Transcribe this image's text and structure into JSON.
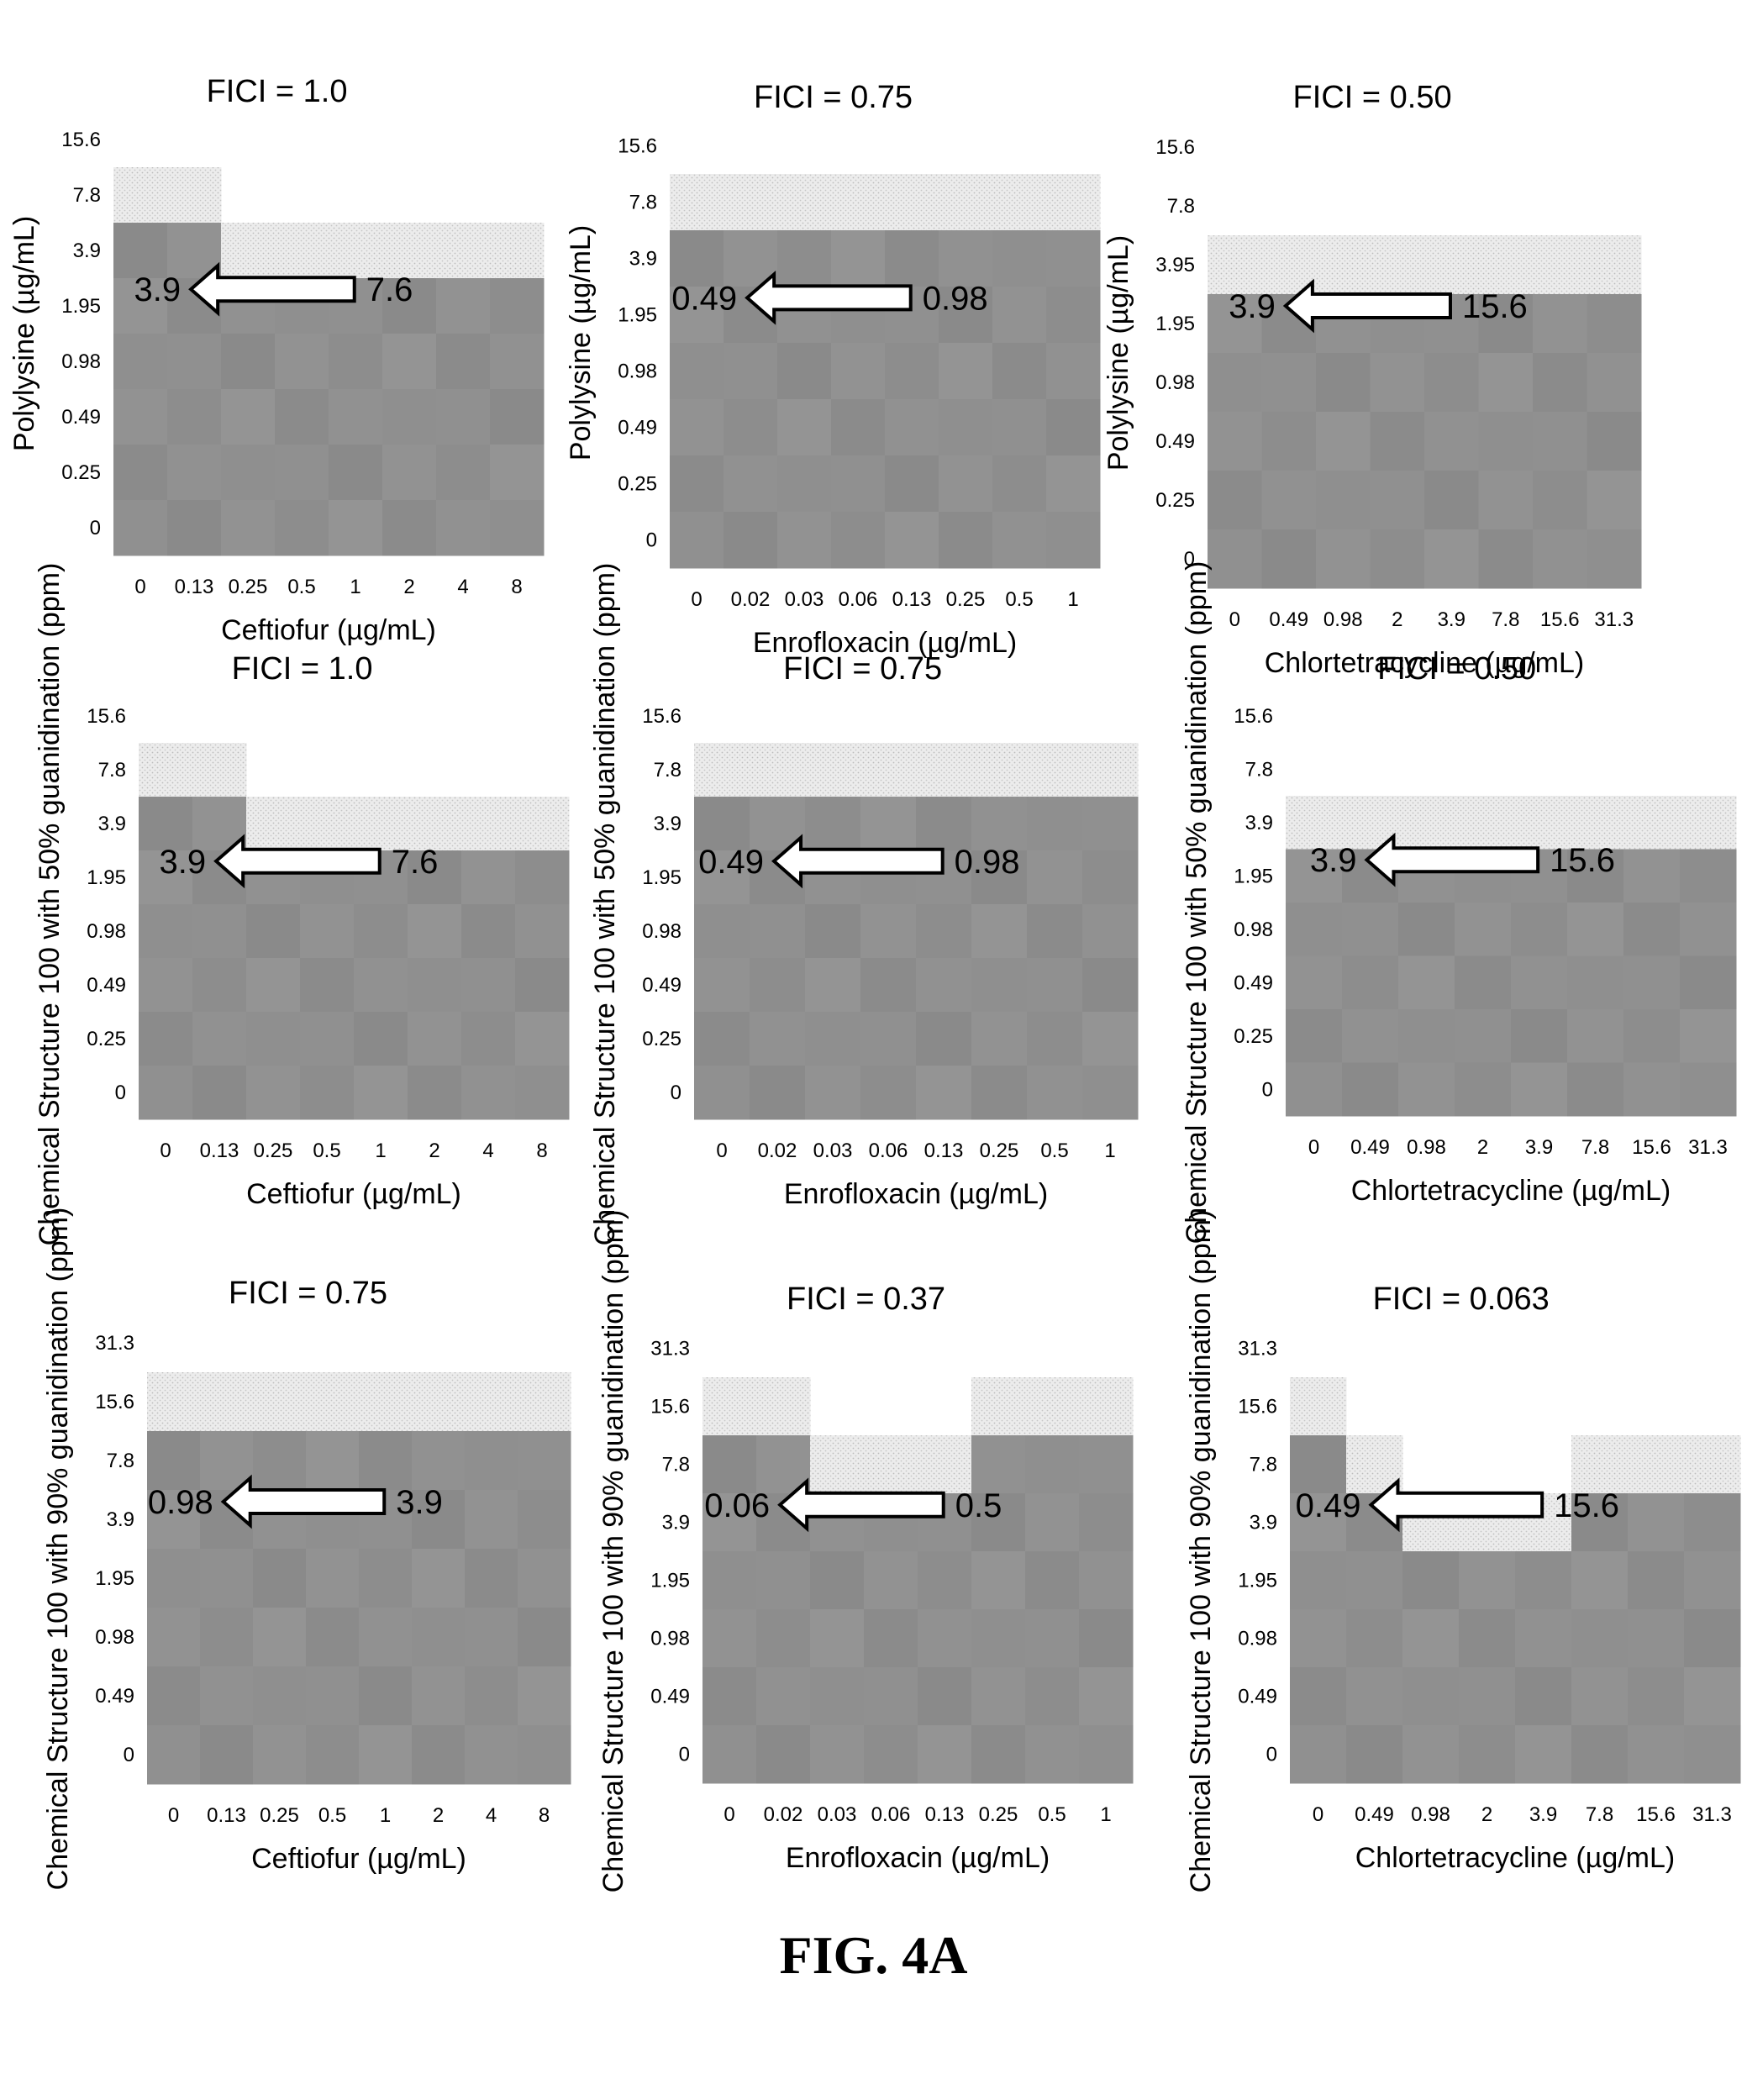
{
  "figure_caption": "FIG. 4A",
  "chart_data": [
    {
      "type": "heatmap",
      "title": "FICI = 1.0",
      "xlabel": "Ceftiofur (µg/mL)",
      "ylabel": "Polylysine (µg/mL)",
      "x_ticks": [
        "0",
        "0.13",
        "0.25",
        "0.5",
        "1",
        "2",
        "4",
        "8"
      ],
      "y_ticks": [
        "15.6",
        "7.8",
        "3.9",
        "1.95",
        "0.98",
        "0.49",
        "0.25",
        "0"
      ],
      "growth_boundary": [
        6,
        6,
        5,
        5,
        5,
        5,
        5,
        5
      ],
      "arrow": {
        "from": "7.6",
        "to": "3.9"
      }
    },
    {
      "type": "heatmap",
      "title": "FICI = 0.75",
      "xlabel": "Enrofloxacin (µg/mL)",
      "ylabel": "Polylysine (µg/mL)",
      "x_ticks": [
        "0",
        "0.02",
        "0.03",
        "0.06",
        "0.13",
        "0.25",
        "0.5",
        "1"
      ],
      "y_ticks": [
        "15.6",
        "7.8",
        "3.9",
        "1.95",
        "0.98",
        "0.49",
        "0.25",
        "0"
      ],
      "growth_boundary": [
        6,
        6,
        6,
        6,
        6,
        6,
        6,
        6
      ],
      "arrow": {
        "from": "0.98",
        "to": "0.49"
      }
    },
    {
      "type": "heatmap",
      "title": "FICI = 0.50",
      "xlabel": "Chlortetracycline (µg/mL)",
      "ylabel": "Polylysine (µg/mL)",
      "x_ticks": [
        "0",
        "0.49",
        "0.98",
        "2",
        "3.9",
        "7.8",
        "15.6",
        "31.3"
      ],
      "y_ticks": [
        "15.6",
        "7.8",
        "3.95",
        "1.95",
        "0.98",
        "0.49",
        "0.25",
        "0"
      ],
      "growth_boundary": [
        5,
        5,
        5,
        5,
        5,
        5,
        5,
        5
      ],
      "arrow": {
        "from": "15.6",
        "to": "3.9"
      }
    },
    {
      "type": "heatmap",
      "title": "FICI = 1.0",
      "xlabel": "Ceftiofur (µg/mL)",
      "ylabel": "Chemical Structure 100 with 50% guanidination (ppm)",
      "x_ticks": [
        "0",
        "0.13",
        "0.25",
        "0.5",
        "1",
        "2",
        "4",
        "8"
      ],
      "y_ticks": [
        "15.6",
        "7.8",
        "3.9",
        "1.95",
        "0.98",
        "0.49",
        "0.25",
        "0"
      ],
      "growth_boundary": [
        6,
        6,
        5,
        5,
        5,
        5,
        5,
        5
      ],
      "arrow": {
        "from": "7.6",
        "to": "3.9"
      }
    },
    {
      "type": "heatmap",
      "title": "FICI = 0.75",
      "xlabel": "Enrofloxacin (µg/mL)",
      "ylabel": "Chemical Structure 100 with 50% guanidination (ppm)",
      "x_ticks": [
        "0",
        "0.02",
        "0.03",
        "0.06",
        "0.13",
        "0.25",
        "0.5",
        "1"
      ],
      "y_ticks": [
        "15.6",
        "7.8",
        "3.9",
        "1.95",
        "0.98",
        "0.49",
        "0.25",
        "0"
      ],
      "growth_boundary": [
        6,
        6,
        6,
        6,
        6,
        6,
        6,
        6
      ],
      "arrow": {
        "from": "0.98",
        "to": "0.49"
      }
    },
    {
      "type": "heatmap",
      "title": "FICI = 0.50",
      "xlabel": "Chlortetracycline (µg/mL)",
      "ylabel": "Chemical Structure 100 with 50% guanidination (ppm)",
      "x_ticks": [
        "0",
        "0.49",
        "0.98",
        "2",
        "3.9",
        "7.8",
        "15.6",
        "31.3"
      ],
      "y_ticks": [
        "15.6",
        "7.8",
        "3.9",
        "1.95",
        "0.98",
        "0.49",
        "0.25",
        "0"
      ],
      "growth_boundary": [
        5,
        5,
        5,
        5,
        5,
        5,
        5,
        5
      ],
      "arrow": {
        "from": "15.6",
        "to": "3.9"
      }
    },
    {
      "type": "heatmap",
      "title": "FICI = 0.75",
      "xlabel": "Ceftiofur (µg/mL)",
      "ylabel": "Chemical Structure 100 with 90% guanidination (ppm)",
      "x_ticks": [
        "0",
        "0.13",
        "0.25",
        "0.5",
        "1",
        "2",
        "4",
        "8"
      ],
      "y_ticks": [
        "31.3",
        "15.6",
        "7.8",
        "3.9",
        "1.95",
        "0.98",
        "0.49",
        "0"
      ],
      "growth_boundary": [
        6,
        6,
        6,
        6,
        6,
        6,
        6,
        6
      ],
      "arrow": {
        "from": "3.9",
        "to": "0.98"
      }
    },
    {
      "type": "heatmap",
      "title": "FICI = 0.37",
      "xlabel": "Enrofloxacin (µg/mL)",
      "ylabel": "Chemical Structure 100 with 90% guanidination (ppm)",
      "x_ticks": [
        "0",
        "0.02",
        "0.03",
        "0.06",
        "0.13",
        "0.25",
        "0.5",
        "1"
      ],
      "y_ticks": [
        "31.3",
        "15.6",
        "7.8",
        "3.9",
        "1.95",
        "0.98",
        "0.49",
        "0"
      ],
      "growth_boundary": [
        6,
        6,
        5,
        5,
        5,
        6,
        6,
        6
      ],
      "arrow": {
        "from": "0.5",
        "to": "0.06"
      }
    },
    {
      "type": "heatmap",
      "title": "FICI = 0.063",
      "xlabel": "Chlortetracycline (µg/mL)",
      "ylabel": "Chemical Structure 100 with 90% guanidination (ppm)",
      "x_ticks": [
        "0",
        "0.49",
        "0.98",
        "2",
        "3.9",
        "7.8",
        "15.6",
        "31.3"
      ],
      "y_ticks": [
        "31.3",
        "15.6",
        "7.8",
        "3.9",
        "1.95",
        "0.98",
        "0.49",
        "0"
      ],
      "growth_boundary": [
        6,
        5,
        4,
        4,
        4,
        5,
        5,
        5
      ],
      "arrow": {
        "from": "15.6",
        "to": "0.49"
      }
    }
  ]
}
